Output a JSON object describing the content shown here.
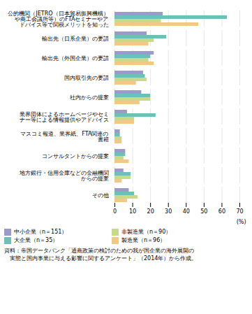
{
  "chart_data": {
    "type": "bar",
    "orientation": "horizontal",
    "categories": [
      "公的機関（JETRO（日本貿易振興機構）\nや商工会議所等）のFTAセミナーやア\nドバイス等で関税メリットを知った",
      "輸出先（日系企業）の要請",
      "輸出先（外国企業）の要請",
      "国内取引先の要請",
      "社内からの提案",
      "業界団体によるホームページやセミ\nナー等による情報提供やアドバイス",
      "マスコミ報道、業界紙、FTA関連の\n書籍",
      "コンサルタントからの提案",
      "地方銀行・信用金庫などの金融機関\nからの提案",
      "その他"
    ],
    "series": [
      {
        "name": "中小企業（n＝151）",
        "color": "#9b9ac8",
        "values": [
          27,
          18,
          22,
          16,
          15,
          7,
          3,
          6,
          5,
          8
        ]
      },
      {
        "name": "大企業（n＝35）",
        "color": "#6dbfb8",
        "values": [
          63,
          29,
          20,
          17,
          20,
          23,
          3,
          6,
          9,
          11
        ]
      },
      {
        "name": "非製造業（n＝90）",
        "color": "#c8d98a",
        "values": [
          26,
          22,
          19,
          18,
          20,
          11,
          4,
          5,
          9,
          13
        ]
      },
      {
        "name": "製造業（n＝96）",
        "color": "#f0c888",
        "values": [
          47,
          19,
          22,
          12,
          14,
          11,
          4,
          8,
          4,
          7
        ]
      }
    ],
    "xlim": [
      0,
      70
    ],
    "xticks": [
      0,
      10,
      20,
      30,
      40,
      50,
      60,
      70
    ],
    "xlabel": "(%)",
    "grid": true,
    "legend": "bottom",
    "caption": "資料：帝国データバンク「通商政策の検討のための我が国企業の海外展開の\n　実態と国内事業に与える影響に関するアンケート」（2014年）から作成。"
  }
}
